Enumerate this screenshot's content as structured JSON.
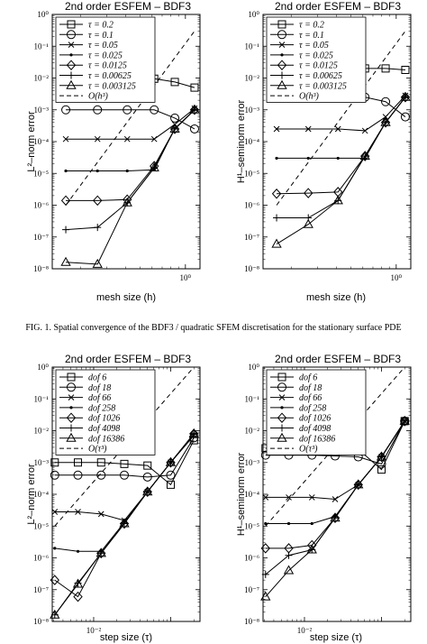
{
  "caption": "FIG. 1. Spatial convergence of the BDF3 / quadratic SFEM discretisation for the stationary surface PDE",
  "chart_data": [
    {
      "type": "line",
      "title": "2nd order ESFEM – BDF3",
      "xlabel": "mesh size (h)",
      "ylabel": "L²–norm error",
      "xscale": "log",
      "yscale": "log",
      "xlim": [
        0.13,
        1.25
      ],
      "ylim": [
        1e-08,
        1
      ],
      "xticks": [
        "10⁰"
      ],
      "yticks": [
        "10⁻⁸",
        "10⁻⁷",
        "10⁻⁶",
        "10⁻⁵",
        "10⁻⁴",
        "10⁻³",
        "10⁻²",
        "10⁻¹",
        "10⁰"
      ],
      "x": [
        0.16,
        0.26,
        0.41,
        0.62,
        0.85,
        1.15
      ],
      "legend_loc": "top-left",
      "series": [
        {
          "name": "τ = 0.2",
          "marker": "square",
          "values": [
            0.01,
            0.01,
            0.01,
            0.0095,
            0.0075,
            0.005
          ]
        },
        {
          "name": "τ = 0.1",
          "marker": "circle",
          "values": [
            0.001,
            0.001,
            0.001,
            0.001,
            0.00055,
            0.00025
          ]
        },
        {
          "name": "τ = 0.05",
          "marker": "x",
          "values": [
            0.00012,
            0.00012,
            0.00012,
            0.00012,
            0.00035,
            0.0011
          ]
        },
        {
          "name": "τ = 0.025",
          "marker": "dot",
          "values": [
            1.2e-05,
            1.2e-05,
            1.2e-05,
            1.3e-05,
            0.00026,
            0.001
          ]
        },
        {
          "name": "τ = 0.0125",
          "marker": "diamond",
          "values": [
            1.4e-06,
            1.4e-06,
            1.5e-06,
            1.7e-05,
            0.00025,
            0.001
          ]
        },
        {
          "name": "τ = 0.00625",
          "marker": "plus",
          "values": [
            1.7e-07,
            2e-07,
            1.2e-06,
            1.5e-05,
            0.00025,
            0.001
          ]
        },
        {
          "name": "τ = 0.003125",
          "marker": "triangle",
          "values": [
            1.6e-08,
            1.4e-08,
            1.2e-06,
            1.5e-05,
            0.00025,
            0.001
          ]
        }
      ],
      "reference": {
        "name": "O(h³)",
        "x": [
          0.16,
          1.15
        ],
        "y": [
          1e-06,
          0.3
        ]
      }
    },
    {
      "type": "line",
      "title": "2nd order ESFEM – BDF3",
      "xlabel": "mesh size (h)",
      "ylabel": "H¹–seminorm error",
      "xscale": "log",
      "yscale": "log",
      "xlim": [
        0.13,
        1.25
      ],
      "ylim": [
        1e-08,
        1
      ],
      "xticks": [
        "10⁰"
      ],
      "yticks": [
        "10⁻⁸",
        "10⁻⁷",
        "10⁻⁶",
        "10⁻⁵",
        "10⁻⁴",
        "10⁻³",
        "10⁻²",
        "10⁻¹",
        "10⁰"
      ],
      "x": [
        0.16,
        0.26,
        0.41,
        0.62,
        0.85,
        1.15
      ],
      "legend_loc": "top-left",
      "series": [
        {
          "name": "τ = 0.2",
          "marker": "square",
          "values": [
            0.02,
            0.02,
            0.02,
            0.02,
            0.02,
            0.018
          ]
        },
        {
          "name": "τ = 0.1",
          "marker": "circle",
          "values": [
            0.0025,
            0.0025,
            0.0025,
            0.0025,
            0.0018,
            0.0006
          ]
        },
        {
          "name": "τ = 0.05",
          "marker": "x",
          "values": [
            0.00025,
            0.00025,
            0.00025,
            0.00022,
            0.0006,
            0.0028
          ]
        },
        {
          "name": "τ = 0.025",
          "marker": "dot",
          "values": [
            3e-05,
            3e-05,
            3e-05,
            3e-05,
            0.0004,
            0.0025
          ]
        },
        {
          "name": "τ = 0.0125",
          "marker": "diamond",
          "values": [
            2.3e-06,
            2.4e-06,
            2.6e-06,
            3.5e-05,
            0.0004,
            0.0025
          ]
        },
        {
          "name": "τ = 0.00625",
          "marker": "plus",
          "values": [
            4e-07,
            4e-07,
            1.4e-06,
            3.5e-05,
            0.0004,
            0.0025
          ]
        },
        {
          "name": "τ = 0.003125",
          "marker": "triangle",
          "values": [
            6e-08,
            2.5e-07,
            1.4e-06,
            3.5e-05,
            0.0004,
            0.0025
          ]
        }
      ],
      "reference": {
        "name": "O(h³)",
        "x": [
          0.16,
          1.15
        ],
        "y": [
          1e-06,
          0.3
        ]
      }
    },
    {
      "type": "line",
      "title": "2nd order ESFEM – BDF3",
      "xlabel": "step size (τ)",
      "ylabel": "L²–norm error",
      "xscale": "log",
      "yscale": "log",
      "xlim": [
        0.0029,
        0.24
      ],
      "ylim": [
        1e-08,
        1
      ],
      "xticks": [
        "10⁻²"
      ],
      "yticks": [
        "10⁻⁸",
        "10⁻⁷",
        "10⁻⁶",
        "10⁻⁵",
        "10⁻⁴",
        "10⁻³",
        "10⁻²",
        "10⁻¹",
        "10⁰"
      ],
      "x": [
        0.003125,
        0.00625,
        0.0125,
        0.025,
        0.05,
        0.1,
        0.2
      ],
      "legend_loc": "top-left",
      "series": [
        {
          "name": "dof 6",
          "marker": "square",
          "values": [
            0.001,
            0.001,
            0.001,
            0.0009,
            0.0008,
            0.0002,
            0.005
          ]
        },
        {
          "name": "dof 18",
          "marker": "circle",
          "values": [
            0.0004,
            0.0004,
            0.0004,
            0.0004,
            0.00035,
            0.0004,
            0.006
          ]
        },
        {
          "name": "dof 66",
          "marker": "x",
          "values": [
            2.8e-05,
            2.8e-05,
            2.4e-05,
            1.5e-05,
            0.00012,
            0.001,
            0.007
          ]
        },
        {
          "name": "dof 258",
          "marker": "dot",
          "values": [
            2e-06,
            1.6e-06,
            1.6e-06,
            1.3e-05,
            0.00012,
            0.001,
            0.008
          ]
        },
        {
          "name": "dof 1026",
          "marker": "diamond",
          "values": [
            2e-07,
            6e-08,
            1.4e-06,
            1.2e-05,
            0.00012,
            0.001,
            0.008
          ]
        },
        {
          "name": "dof 4098",
          "marker": "plus",
          "values": [
            1.6e-08,
            1.6e-07,
            1.4e-06,
            1.2e-05,
            0.00012,
            0.001,
            0.008
          ]
        },
        {
          "name": "dof 16386",
          "marker": "triangle",
          "values": [
            1.6e-08,
            1.5e-07,
            1.4e-06,
            1.2e-05,
            0.00012,
            0.001,
            0.008
          ]
        }
      ],
      "reference": {
        "name": "O(τ³)",
        "x": [
          0.003125,
          0.2
        ],
        "y": [
          1e-05,
          1
        ]
      }
    },
    {
      "type": "line",
      "title": "2nd order ESFEM – BDF3",
      "xlabel": "step size (τ)",
      "ylabel": "H¹–seminorm error",
      "xscale": "log",
      "yscale": "log",
      "xlim": [
        0.0029,
        0.24
      ],
      "ylim": [
        1e-08,
        1
      ],
      "xticks": [
        "10⁻²"
      ],
      "yticks": [
        "10⁻⁸",
        "10⁻⁷",
        "10⁻⁶",
        "10⁻⁵",
        "10⁻⁴",
        "10⁻³",
        "10⁻²",
        "10⁻¹",
        "10⁰"
      ],
      "x": [
        0.003125,
        0.00625,
        0.0125,
        0.025,
        0.05,
        0.1,
        0.2
      ],
      "legend_loc": "top-left",
      "series": [
        {
          "name": "dof 6",
          "marker": "square",
          "values": [
            0.0028,
            0.0028,
            0.0028,
            0.0027,
            0.0026,
            0.0006,
            0.02
          ]
        },
        {
          "name": "dof 18",
          "marker": "circle",
          "values": [
            0.0017,
            0.0017,
            0.0017,
            0.0016,
            0.0015,
            0.0009,
            0.02
          ]
        },
        {
          "name": "dof 66",
          "marker": "x",
          "values": [
            8e-05,
            8e-05,
            8e-05,
            7e-05,
            0.0002,
            0.0015,
            0.02
          ]
        },
        {
          "name": "dof 258",
          "marker": "dot",
          "values": [
            1.2e-05,
            1.2e-05,
            1.2e-05,
            2e-05,
            0.0002,
            0.0015,
            0.02
          ]
        },
        {
          "name": "dof 1026",
          "marker": "diamond",
          "values": [
            2e-06,
            2e-06,
            2.5e-06,
            1.8e-05,
            0.0002,
            0.0015,
            0.02
          ]
        },
        {
          "name": "dof 4098",
          "marker": "plus",
          "values": [
            3e-07,
            1.2e-06,
            1.8e-06,
            1.8e-05,
            0.0002,
            0.0015,
            0.02
          ]
        },
        {
          "name": "dof 16386",
          "marker": "triangle",
          "values": [
            6e-08,
            4e-07,
            1.8e-06,
            1.8e-05,
            0.0002,
            0.0015,
            0.02
          ]
        }
      ],
      "reference": {
        "name": "O(τ³)",
        "x": [
          0.003125,
          0.2
        ],
        "y": [
          1e-05,
          1
        ]
      }
    }
  ]
}
